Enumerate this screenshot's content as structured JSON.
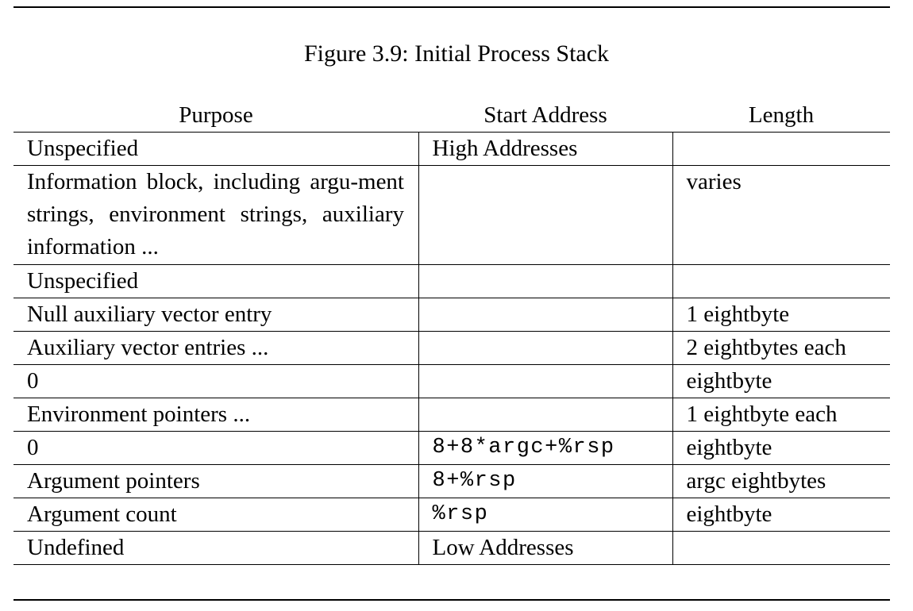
{
  "caption": "Figure 3.9: Initial Process Stack",
  "table": {
    "headers": [
      "Purpose",
      "Start Address",
      "Length"
    ],
    "rows": [
      {
        "purpose": "Unspecified",
        "start": "High Addresses",
        "length": "",
        "mono": false
      },
      {
        "purpose": "Information block, including argu-ment strings, environment strings, auxiliary information ...",
        "start": "",
        "length": "varies",
        "mono": false,
        "tall": true
      },
      {
        "purpose": "Unspecified",
        "start": "",
        "length": "",
        "mono": false
      },
      {
        "purpose": "Null auxiliary vector entry",
        "start": "",
        "length": "1 eightbyte",
        "mono": false
      },
      {
        "purpose": "Auxiliary vector entries ...",
        "start": "",
        "length": "2 eightbytes each",
        "mono": false
      },
      {
        "purpose": "0",
        "start": "",
        "length": "eightbyte",
        "mono": false
      },
      {
        "purpose": "Environment pointers ...",
        "start": "",
        "length": "1 eightbyte each",
        "mono": false
      },
      {
        "purpose": "0",
        "start": "8+8*argc+%rsp",
        "length": "eightbyte",
        "mono": true
      },
      {
        "purpose": "Argument pointers",
        "start": "8+%rsp",
        "length": "argc eightbytes",
        "mono": true
      },
      {
        "purpose": "Argument count",
        "start": "%rsp",
        "length": "eightbyte",
        "mono": true
      },
      {
        "purpose": "Undefined",
        "start": "Low Addresses",
        "length": "",
        "mono": false
      }
    ]
  }
}
